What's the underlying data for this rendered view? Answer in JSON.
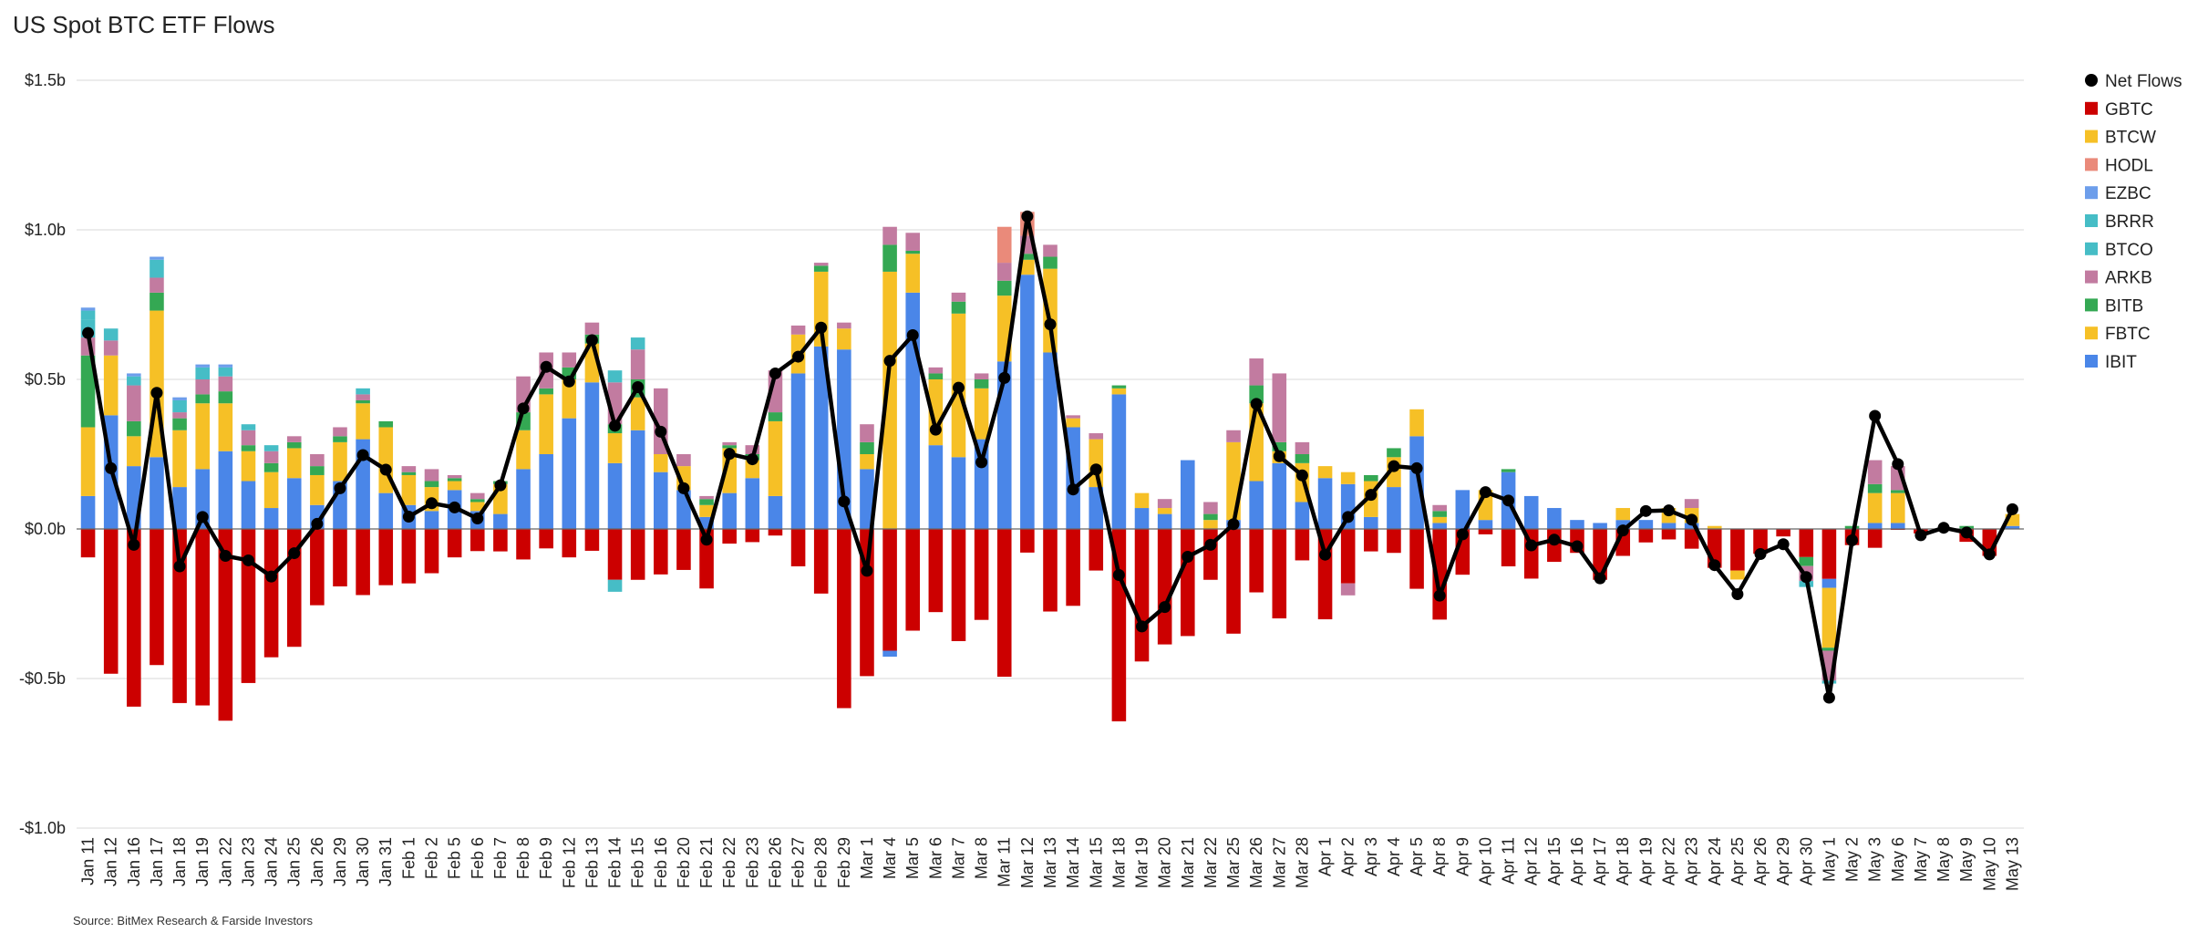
{
  "chart_data": {
    "type": "bar",
    "title": "US Spot BTC ETF Flows",
    "source": "Source: BitMex Research & Farside Investors",
    "stacked": true,
    "ylim": [
      -1.0,
      1.5
    ],
    "ytick_values": [
      -1.0,
      -0.5,
      0.0,
      0.5,
      1.0,
      1.5
    ],
    "ytick_labels": [
      "-$1.0b",
      "-$0.5b",
      "$0.0b",
      "$0.5b",
      "$1.0b",
      "$1.5b"
    ],
    "grid": true,
    "legend_position": "right",
    "colors": {
      "IBIT": "#4a86e8",
      "FBTC": "#f6c026",
      "BITB": "#34a853",
      "ARKB": "#c27ba0",
      "BTCO": "#46bdc6",
      "BRRR": "#46bdc6",
      "EZBC": "#6d9eeb",
      "HODL": "#ea8a7a",
      "BTCW": "#f6c026",
      "GBTC": "#cc0000",
      "Net Flows": "#000000"
    },
    "legend": [
      "Net Flows",
      "GBTC",
      "BTCW",
      "HODL",
      "EZBC",
      "BRRR",
      "BTCO",
      "ARKB",
      "BITB",
      "FBTC",
      "IBIT"
    ],
    "stack_order": [
      "IBIT",
      "FBTC",
      "BITB",
      "ARKB",
      "BTCO",
      "BRRR",
      "EZBC",
      "HODL",
      "BTCW"
    ],
    "categories": [
      "Jan 11",
      "Jan 12",
      "Jan 16",
      "Jan 17",
      "Jan 18",
      "Jan 19",
      "Jan 22",
      "Jan 23",
      "Jan 24",
      "Jan 25",
      "Jan 26",
      "Jan 29",
      "Jan 30",
      "Jan 31",
      "Feb 1",
      "Feb 2",
      "Feb 5",
      "Feb 6",
      "Feb 7",
      "Feb 8",
      "Feb 9",
      "Feb 12",
      "Feb 13",
      "Feb 14",
      "Feb 15",
      "Feb 16",
      "Feb 20",
      "Feb 21",
      "Feb 22",
      "Feb 23",
      "Feb 26",
      "Feb 27",
      "Feb 28",
      "Feb 29",
      "Mar 1",
      "Mar 4",
      "Mar 5",
      "Mar 6",
      "Mar 7",
      "Mar 8",
      "Mar 11",
      "Mar 12",
      "Mar 13",
      "Mar 14",
      "Mar 15",
      "Mar 18",
      "Mar 19",
      "Mar 20",
      "Mar 21",
      "Mar 22",
      "Mar 25",
      "Mar 26",
      "Mar 27",
      "Mar 28",
      "Apr 1",
      "Apr 2",
      "Apr 3",
      "Apr 4",
      "Apr 5",
      "Apr 8",
      "Apr 9",
      "Apr 10",
      "Apr 11",
      "Apr 12",
      "Apr 15",
      "Apr 16",
      "Apr 17",
      "Apr 18",
      "Apr 19",
      "Apr 22",
      "Apr 23",
      "Apr 24",
      "Apr 25",
      "Apr 26",
      "Apr 29",
      "Apr 30",
      "May 1",
      "May 2",
      "May 3",
      "May 6",
      "May 7",
      "May 8",
      "May 9",
      "May 10",
      "May 13"
    ],
    "series": [
      {
        "name": "IBIT",
        "values": [
          0.11,
          0.38,
          0.21,
          0.24,
          0.14,
          0.2,
          0.26,
          0.16,
          0.07,
          0.17,
          0.08,
          0.16,
          0.3,
          0.12,
          0.08,
          0.06,
          0.13,
          0.06,
          0.05,
          0.2,
          0.25,
          0.37,
          0.49,
          0.22,
          0.33,
          0.19,
          0.13,
          0.04,
          0.12,
          0.17,
          0.11,
          0.52,
          0.61,
          0.6,
          0.2,
          -0.02,
          0.79,
          0.28,
          0.24,
          0.3,
          0.56,
          0.85,
          0.59,
          0.34,
          0.14,
          0.45,
          0.07,
          0.05,
          0.23,
          0,
          0.03,
          0.16,
          0.22,
          0.09,
          0.17,
          0.15,
          0.04,
          0.14,
          0.31,
          0.02,
          0.13,
          0.03,
          0.19,
          0.11,
          0.07,
          0.03,
          0.02,
          0.03,
          0.03,
          0.02,
          0.02,
          0,
          0,
          0,
          0,
          0,
          -0.03,
          0,
          0.02,
          0.02,
          0,
          0,
          0,
          0,
          0.01
        ]
      },
      {
        "name": "FBTC",
        "values": [
          0.23,
          0.2,
          0.1,
          0.49,
          0.19,
          0.22,
          0.16,
          0.1,
          0.12,
          0.1,
          0.1,
          0.13,
          0.12,
          0.22,
          0.1,
          0.08,
          0.03,
          0.03,
          0.1,
          0.13,
          0.2,
          0.13,
          0.13,
          0.1,
          0.11,
          0.06,
          0.08,
          0.04,
          0.15,
          0.06,
          0.25,
          0.13,
          0.25,
          0.07,
          0.05,
          0.86,
          0.13,
          0.22,
          0.48,
          0.17,
          0.22,
          0.05,
          0.28,
          0.03,
          0.16,
          0.02,
          0.05,
          0.02,
          0,
          0.03,
          0.26,
          0.26,
          0.04,
          0.13,
          0.04,
          0.04,
          0.12,
          0.1,
          0.09,
          0.02,
          0,
          0.1,
          0,
          0,
          0,
          0,
          0,
          0.04,
          0,
          0.05,
          0.05,
          0.01,
          -0.03,
          0,
          0,
          0,
          -0.2,
          0,
          0.1,
          0.1,
          0,
          0,
          0,
          0,
          0.04
        ]
      },
      {
        "name": "BITB",
        "values": [
          0.24,
          0,
          0.05,
          0.06,
          0.04,
          0.03,
          0.04,
          0.02,
          0.03,
          0.02,
          0.03,
          0.02,
          0.01,
          0.02,
          0.01,
          0.02,
          0.01,
          0.01,
          0.01,
          0.06,
          0.02,
          0.04,
          0.03,
          0.03,
          0.06,
          0,
          0,
          0.02,
          0.01,
          0.02,
          0.03,
          0,
          0.02,
          0,
          0.04,
          0.09,
          0.01,
          0.02,
          0.04,
          0.03,
          0.05,
          0.02,
          0.04,
          0,
          0,
          0.01,
          0,
          0,
          0,
          0.02,
          0,
          0.06,
          0.03,
          0.03,
          0,
          0,
          0.02,
          0.03,
          0,
          0.02,
          0,
          0,
          0.01,
          0,
          0,
          0,
          0,
          0,
          0,
          0,
          0,
          0,
          0,
          0,
          0,
          -0.03,
          -0.01,
          0.01,
          0.03,
          0.01,
          0,
          0,
          0.01,
          0,
          0
        ]
      },
      {
        "name": "ARKB",
        "values": [
          0.06,
          0.05,
          0.12,
          0.05,
          0.02,
          0.05,
          0.05,
          0.05,
          0.04,
          0.02,
          0.04,
          0.03,
          0.02,
          0,
          0.02,
          0.04,
          0.01,
          0.02,
          0,
          0.12,
          0.12,
          0.05,
          0.04,
          0.14,
          0.1,
          0.22,
          0.04,
          0.01,
          0.01,
          0.03,
          0.14,
          0.03,
          0.01,
          0.02,
          0.06,
          0.06,
          0.06,
          0.02,
          0.03,
          0.02,
          0.06,
          0.06,
          0.04,
          0.01,
          0.02,
          0,
          0,
          0.03,
          0,
          0.04,
          0.04,
          0.09,
          0.23,
          0.04,
          0,
          -0.04,
          0,
          0,
          0,
          0.02,
          0,
          0,
          0,
          0,
          0,
          0,
          0,
          0,
          0,
          0,
          0.03,
          0,
          0,
          0,
          0,
          -0.05,
          -0.1,
          0,
          0.08,
          0.08,
          0,
          0,
          0,
          0,
          0
        ]
      },
      {
        "name": "BTCO",
        "values": [
          0.06,
          0.04,
          0.03,
          0.06,
          0.04,
          0.04,
          0.03,
          0.02,
          0.02,
          0,
          0,
          0,
          0.02,
          0,
          0,
          0,
          0,
          0,
          0,
          0,
          0,
          0,
          0,
          0.04,
          0.04,
          0,
          0,
          0,
          0,
          0,
          0,
          0,
          0,
          0,
          0,
          0,
          0,
          0,
          0,
          0,
          0,
          0,
          0,
          0,
          0,
          0,
          0,
          0,
          0,
          0,
          0,
          0,
          0,
          0,
          0,
          0,
          0,
          0,
          0,
          0,
          0,
          0,
          0,
          0,
          0,
          0,
          0,
          0,
          0,
          0,
          0,
          0,
          0,
          0,
          0,
          0,
          0,
          0,
          0,
          0,
          0,
          0,
          0,
          0,
          0
        ]
      },
      {
        "name": "BRRR",
        "values": [
          0.03,
          0,
          0,
          0,
          0,
          0,
          0,
          0,
          0,
          0,
          0,
          0,
          0,
          0,
          0,
          0,
          0,
          0,
          0,
          0,
          0,
          0,
          0,
          -0.04,
          0,
          0,
          0,
          0,
          0,
          0,
          0,
          0,
          0,
          0,
          0,
          0,
          0,
          0,
          0,
          0,
          0,
          0,
          0,
          0,
          0,
          0,
          0,
          0,
          0,
          0,
          0,
          0,
          0,
          0,
          0,
          0,
          0,
          0,
          0,
          0,
          0,
          0,
          0,
          0,
          0,
          0,
          0,
          0,
          0,
          0,
          0,
          0,
          0,
          0,
          0,
          -0.02,
          -0.01,
          0,
          0,
          0,
          0,
          0,
          0,
          0,
          0
        ]
      },
      {
        "name": "EZBC",
        "values": [
          0.01,
          0,
          0.01,
          0.01,
          0.01,
          0.01,
          0.01,
          0,
          0,
          0,
          0,
          0,
          0,
          0,
          0,
          0,
          0,
          0,
          0,
          0,
          0,
          0,
          0,
          0,
          0,
          0,
          0,
          0,
          0,
          0,
          0,
          0,
          0,
          0,
          0,
          0,
          0,
          0,
          0,
          0,
          0,
          0,
          0,
          0,
          0,
          0,
          0,
          0,
          0,
          0,
          0,
          0,
          0,
          0,
          0,
          0,
          0,
          0,
          0,
          0,
          0,
          0,
          0,
          0,
          0,
          0,
          0,
          0,
          0,
          0,
          0,
          0,
          0,
          0,
          0,
          0,
          0,
          0,
          0,
          0,
          0,
          0,
          0,
          0,
          0
        ]
      },
      {
        "name": "HODL",
        "values": [
          0,
          0,
          0,
          0,
          0,
          0,
          0,
          0,
          0,
          0,
          0,
          0,
          0,
          0,
          0,
          0,
          0,
          0,
          0,
          0,
          0,
          0,
          0,
          0,
          0,
          0,
          0,
          0,
          0,
          0,
          0,
          0,
          0,
          0,
          0,
          0,
          0,
          0,
          0,
          0,
          0.12,
          0.08,
          0,
          0,
          0,
          0,
          0,
          0,
          0,
          0,
          0,
          0,
          0,
          0,
          0,
          0,
          0,
          0,
          0,
          0,
          0,
          0,
          0,
          0,
          0,
          0,
          0,
          0,
          0,
          0,
          0,
          0,
          0,
          0,
          0,
          0,
          0,
          0,
          0,
          0,
          0,
          0,
          0,
          0,
          0
        ]
      },
      {
        "name": "BTCW",
        "values": [
          0,
          0,
          0,
          0,
          0,
          0,
          0,
          0,
          0,
          0,
          0,
          0,
          0,
          0,
          0,
          0,
          0,
          0,
          0,
          0,
          0,
          0,
          0,
          0,
          0,
          0,
          0,
          0,
          0,
          0,
          0,
          0,
          0,
          0,
          0,
          0,
          0,
          0,
          0,
          0,
          0,
          0,
          0,
          0,
          0,
          0,
          0,
          0,
          0,
          0,
          0,
          0,
          0,
          0,
          0,
          0,
          0,
          0,
          0,
          0,
          0,
          0,
          0,
          0,
          0,
          0,
          0,
          0,
          0,
          0,
          0,
          0,
          0,
          0,
          0,
          0,
          0,
          0,
          0,
          0,
          0,
          0,
          0,
          0,
          0
        ]
      },
      {
        "name": "GBTC",
        "values": [
          -0.095,
          -0.484,
          -0.594,
          -0.455,
          -0.582,
          -0.59,
          -0.641,
          -0.515,
          -0.429,
          -0.394,
          -0.255,
          -0.192,
          -0.221,
          -0.188,
          -0.182,
          -0.148,
          -0.095,
          -0.074,
          -0.075,
          -0.102,
          -0.065,
          -0.095,
          -0.073,
          -0.17,
          -0.17,
          -0.152,
          -0.137,
          -0.199,
          -0.049,
          -0.044,
          -0.022,
          -0.125,
          -0.216,
          -0.599,
          -0.492,
          -0.407,
          -0.34,
          -0.278,
          -0.375,
          -0.304,
          -0.494,
          -0.079,
          -0.276,
          -0.257,
          -0.139,
          -0.643,
          -0.443,
          -0.386,
          -0.358,
          -0.17,
          -0.35,
          -0.212,
          -0.299,
          -0.105,
          -0.302,
          -0.182,
          -0.075,
          -0.08,
          -0.2,
          -0.303,
          -0.153,
          -0.018,
          -0.125,
          -0.166,
          -0.11,
          -0.08,
          -0.17,
          -0.09,
          -0.045,
          -0.035,
          -0.066,
          -0.13,
          -0.139,
          -0.083,
          -0.025,
          -0.094,
          -0.167,
          -0.054,
          -0.063,
          -0.003,
          -0.015,
          0,
          -0.043,
          -0.09,
          0
        ]
      }
    ],
    "net_flows": [
      0.655,
      0.203,
      -0.053,
      0.455,
      -0.125,
      0.04,
      -0.09,
      -0.105,
      -0.159,
      -0.081,
      0.017,
      0.136,
      0.247,
      0.198,
      0.041,
      0.086,
      0.072,
      0.035,
      0.146,
      0.403,
      0.542,
      0.493,
      0.631,
      0.345,
      0.474,
      0.325,
      0.136,
      -0.036,
      0.251,
      0.233,
      0.52,
      0.576,
      0.673,
      0.092,
      -0.14,
      0.562,
      0.648,
      0.332,
      0.472,
      0.223,
      0.505,
      1.045,
      0.684,
      0.132,
      0.199,
      -0.154,
      -0.326,
      -0.261,
      -0.093,
      -0.053,
      0.016,
      0.418,
      0.243,
      0.179,
      -0.086,
      0.04,
      0.114,
      0.21,
      0.203,
      -0.223,
      -0.018,
      0.123,
      0.095,
      -0.055,
      -0.036,
      -0.058,
      -0.165,
      -0.005,
      0.06,
      0.062,
      0.031,
      -0.121,
      -0.218,
      -0.084,
      -0.051,
      -0.161,
      -0.564,
      -0.038,
      0.378,
      0.217,
      -0.021,
      0.004,
      -0.012,
      -0.085,
      0.066
    ]
  }
}
